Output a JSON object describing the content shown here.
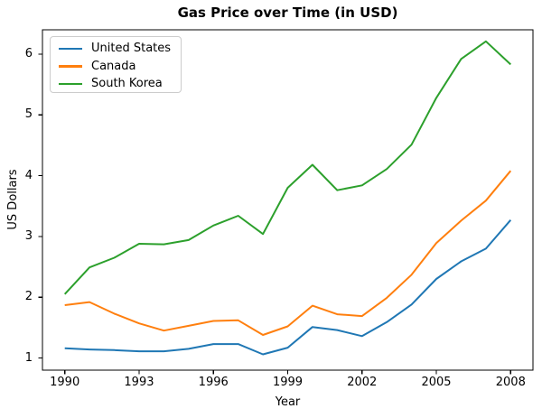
{
  "figure": {
    "background": "#ffffff",
    "frame_color": "#000000"
  },
  "chart_data": {
    "type": "line",
    "title": "Gas Price over Time (in USD)",
    "xlabel": "Year",
    "ylabel": "US Dollars",
    "grid": false,
    "legend_position": "upper left",
    "xlim": [
      1989.1,
      2008.9
    ],
    "ylim": [
      0.8,
      6.4
    ],
    "x_tick_labels": [
      "1990",
      "1993",
      "1996",
      "1999",
      "2002",
      "2005",
      "2008"
    ],
    "y_tick_labels": [
      "1",
      "2",
      "3",
      "4",
      "5",
      "6"
    ],
    "x": [
      1990,
      1991,
      1992,
      1993,
      1994,
      1995,
      1996,
      1997,
      1998,
      1999,
      2000,
      2001,
      2002,
      2003,
      2004,
      2005,
      2006,
      2007,
      2008
    ],
    "series": [
      {
        "name": "United States",
        "color": "#1f77b4",
        "values": [
          1.16,
          1.14,
          1.13,
          1.11,
          1.11,
          1.15,
          1.23,
          1.23,
          1.06,
          1.17,
          1.51,
          1.46,
          1.36,
          1.59,
          1.88,
          2.3,
          2.59,
          2.8,
          3.27
        ]
      },
      {
        "name": "Canada",
        "color": "#ff7f0e",
        "values": [
          1.87,
          1.92,
          1.73,
          1.57,
          1.45,
          1.53,
          1.61,
          1.62,
          1.38,
          1.52,
          1.86,
          1.72,
          1.69,
          1.99,
          2.37,
          2.89,
          3.26,
          3.59,
          4.08
        ]
      },
      {
        "name": "South Korea",
        "color": "#2ca02c",
        "values": [
          2.05,
          2.49,
          2.65,
          2.88,
          2.87,
          2.94,
          3.18,
          3.34,
          3.04,
          3.8,
          4.18,
          3.76,
          3.84,
          4.11,
          4.51,
          5.28,
          5.92,
          6.21,
          5.83
        ]
      }
    ]
  }
}
